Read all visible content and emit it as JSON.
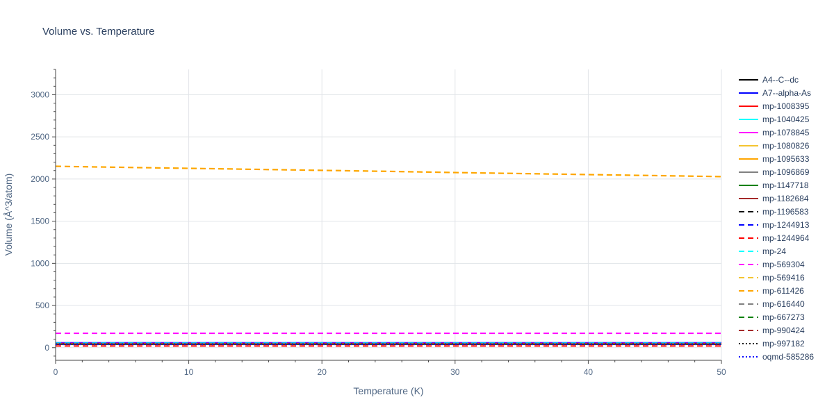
{
  "chart_data": {
    "type": "line",
    "title": "Volume vs. Temperature",
    "xlabel": "Temperature (K)",
    "ylabel": "Volume (Å^3/atom)",
    "xlim": [
      0,
      50
    ],
    "ylim": [
      -150,
      3300
    ],
    "x_ticks": [
      0,
      10,
      20,
      30,
      40,
      50
    ],
    "y_ticks": [
      0,
      500,
      1000,
      1500,
      2000,
      2500,
      3000
    ],
    "grid": true,
    "legend_position": "right",
    "x": [
      0,
      5,
      10,
      15,
      20,
      25,
      30,
      35,
      40,
      45,
      50
    ],
    "series": [
      {
        "name": "A4--C--dc",
        "color": "#000000",
        "dash": "solid",
        "values": [
          40,
          40,
          40,
          40,
          40,
          40,
          40,
          40,
          40,
          40,
          40
        ]
      },
      {
        "name": "A7--alpha-As",
        "color": "#0000ff",
        "dash": "solid",
        "values": [
          58,
          58,
          58,
          58,
          58,
          58,
          58,
          58,
          58,
          58,
          58
        ]
      },
      {
        "name": "mp-1008395",
        "color": "#ff0000",
        "dash": "solid",
        "values": [
          45,
          45,
          45,
          45,
          45,
          45,
          45,
          45,
          45,
          45,
          45
        ]
      },
      {
        "name": "mp-1040425",
        "color": "#00ffff",
        "dash": "solid",
        "values": [
          50,
          50,
          50,
          50,
          50,
          50,
          50,
          50,
          50,
          50,
          50
        ]
      },
      {
        "name": "mp-1078845",
        "color": "#ff00ff",
        "dash": "solid",
        "values": [
          52,
          52,
          52,
          52,
          52,
          52,
          52,
          52,
          52,
          52,
          52
        ]
      },
      {
        "name": "mp-1080826",
        "color": "#f4c430",
        "dash": "solid",
        "values": [
          48,
          48,
          48,
          48,
          48,
          48,
          48,
          48,
          48,
          48,
          48
        ]
      },
      {
        "name": "mp-1095633",
        "color": "#ffa500",
        "dash": "solid",
        "values": [
          44,
          44,
          44,
          44,
          44,
          44,
          44,
          44,
          44,
          44,
          44
        ]
      },
      {
        "name": "mp-1096869",
        "color": "#808080",
        "dash": "solid",
        "values": [
          46,
          46,
          46,
          46,
          46,
          46,
          46,
          46,
          46,
          46,
          46
        ]
      },
      {
        "name": "mp-1147718",
        "color": "#008000",
        "dash": "solid",
        "values": [
          42,
          42,
          42,
          42,
          42,
          42,
          42,
          42,
          42,
          42,
          42
        ]
      },
      {
        "name": "mp-1182684",
        "color": "#a52a2a",
        "dash": "solid",
        "values": [
          47,
          47,
          47,
          47,
          47,
          47,
          47,
          47,
          47,
          47,
          47
        ]
      },
      {
        "name": "mp-1196583",
        "color": "#000000",
        "dash": "dash",
        "values": [
          40,
          40,
          40,
          40,
          40,
          40,
          40,
          40,
          40,
          40,
          40
        ]
      },
      {
        "name": "mp-1244913",
        "color": "#0000ff",
        "dash": "dash",
        "values": [
          56,
          56,
          56,
          56,
          56,
          56,
          56,
          56,
          56,
          56,
          56
        ]
      },
      {
        "name": "mp-1244964",
        "color": "#ff0000",
        "dash": "dash",
        "values": [
          20,
          20,
          20,
          20,
          20,
          20,
          20,
          20,
          20,
          20,
          20
        ]
      },
      {
        "name": "mp-24",
        "color": "#00ffff",
        "dash": "dash",
        "values": [
          54,
          54,
          54,
          54,
          54,
          54,
          54,
          54,
          54,
          54,
          54
        ]
      },
      {
        "name": "mp-569304",
        "color": "#ff00ff",
        "dash": "dash",
        "values": [
          170,
          170,
          170,
          170,
          170,
          170,
          170,
          170,
          170,
          170,
          170
        ]
      },
      {
        "name": "mp-569416",
        "color": "#f4c430",
        "dash": "dash",
        "values": [
          2152,
          2140,
          2128,
          2116,
          2104,
          2092,
          2078,
          2066,
          2054,
          2042,
          2030
        ]
      },
      {
        "name": "mp-611426",
        "color": "#ffa500",
        "dash": "dash",
        "values": [
          2150,
          2138,
          2126,
          2114,
          2102,
          2090,
          2076,
          2064,
          2052,
          2040,
          2028
        ]
      },
      {
        "name": "mp-616440",
        "color": "#808080",
        "dash": "dash",
        "values": [
          45,
          45,
          45,
          45,
          45,
          45,
          45,
          45,
          45,
          45,
          45
        ]
      },
      {
        "name": "mp-667273",
        "color": "#008000",
        "dash": "dash",
        "values": [
          43,
          43,
          43,
          43,
          43,
          43,
          43,
          43,
          43,
          43,
          43
        ]
      },
      {
        "name": "mp-990424",
        "color": "#a52a2a",
        "dash": "dash",
        "values": [
          44,
          44,
          44,
          44,
          44,
          44,
          44,
          44,
          44,
          44,
          44
        ]
      },
      {
        "name": "mp-997182",
        "color": "#000000",
        "dash": "dot",
        "values": [
          41,
          41,
          41,
          41,
          41,
          41,
          41,
          41,
          41,
          41,
          41
        ]
      },
      {
        "name": "oqmd-585286",
        "color": "#0000ff",
        "dash": "dot",
        "values": [
          38,
          38,
          38,
          38,
          38,
          38,
          38,
          38,
          38,
          38,
          38
        ]
      }
    ]
  }
}
